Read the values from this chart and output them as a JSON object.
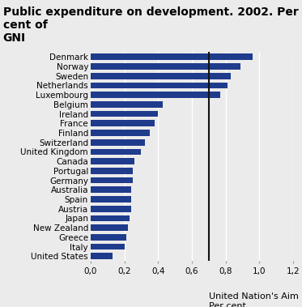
{
  "title": "Public expenditure on development. 2002. Per cent of\nGNI",
  "countries": [
    "Denmark",
    "Norway",
    "Sweden",
    "Netherlands",
    "Luxembourg",
    "Belgium",
    "Ireland",
    "France",
    "Finland",
    "Switzerland",
    "United Kingdom",
    "Canada",
    "Portugal",
    "Germany",
    "Australia",
    "Spain",
    "Austria",
    "Japan",
    "New Zealand",
    "Greece",
    "Italy",
    "United States"
  ],
  "values": [
    0.96,
    0.89,
    0.83,
    0.81,
    0.77,
    0.43,
    0.4,
    0.38,
    0.35,
    0.32,
    0.3,
    0.26,
    0.25,
    0.25,
    0.24,
    0.24,
    0.24,
    0.23,
    0.22,
    0.21,
    0.2,
    0.13
  ],
  "bar_color": "#1f3b8c",
  "vline_x": 0.7,
  "vline_color": "#111111",
  "vline_label": "United Nation's Aim\nPer cent",
  "xlim": [
    0,
    1.2
  ],
  "xticks": [
    0.0,
    0.2,
    0.4,
    0.6,
    0.8,
    1.0,
    1.2
  ],
  "xtick_labels": [
    "0,0",
    "0,2",
    "0,4",
    "0,6",
    "0,8",
    "1,0",
    "1,2"
  ],
  "background_color": "#ebebeb",
  "grid_color": "#ffffff",
  "title_fontsize": 10,
  "tick_fontsize": 7.5,
  "annotation_fontsize": 8
}
